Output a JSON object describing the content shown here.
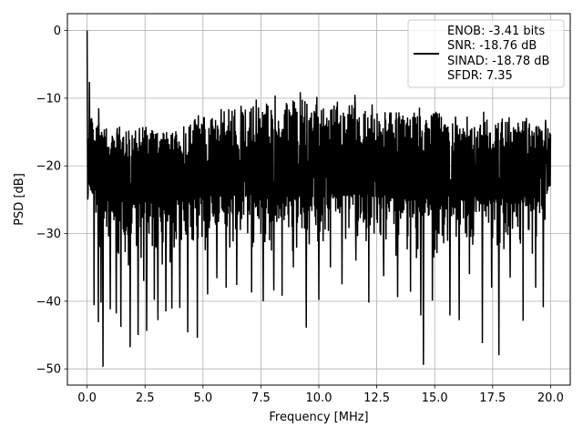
{
  "chart_data": {
    "type": "line",
    "xlabel": "Frequency [MHz]",
    "ylabel": "PSD [dB]",
    "xlim": [
      -0.85,
      20.85
    ],
    "ylim": [
      -52.4,
      2.5
    ],
    "xticks": [
      0.0,
      2.5,
      5.0,
      7.5,
      10.0,
      12.5,
      15.0,
      17.5,
      20.0
    ],
    "xtick_labels": [
      "0.0",
      "2.5",
      "5.0",
      "7.5",
      "10.0",
      "12.5",
      "15.0",
      "17.5",
      "20.0"
    ],
    "yticks": [
      0,
      -10,
      -20,
      -30,
      -40,
      -50
    ],
    "ytick_labels": [
      "0",
      "−10",
      "−20",
      "−30",
      "−40",
      "−50"
    ],
    "grid": true,
    "legend_position": "top-right",
    "legend_lines": [
      "ENOB: -3.41 bits",
      "SNR: -18.76 dB",
      "SINAD: -18.78 dB",
      "SFDR: 7.35"
    ],
    "series": [
      {
        "color": "#000000",
        "x_range": [
          0.0,
          20.0
        ],
        "peak": {
          "x": 0.0,
          "y": 0.0
        },
        "noise_floor_mean": -21,
        "noise_upper_envelope": [
          [
            0.0,
            -12
          ],
          [
            0.5,
            -14
          ],
          [
            1.5,
            -15
          ],
          [
            2.5,
            -14
          ],
          [
            3.5,
            -15
          ],
          [
            4.5,
            -13
          ],
          [
            5.5,
            -12
          ],
          [
            6.5,
            -11
          ],
          [
            7.5,
            -11
          ],
          [
            8.5,
            -10
          ],
          [
            9.5,
            -10
          ],
          [
            10.5,
            -11
          ],
          [
            11.5,
            -11
          ],
          [
            12.5,
            -12
          ],
          [
            13.5,
            -12
          ],
          [
            14.5,
            -12
          ],
          [
            15.5,
            -12
          ],
          [
            16.5,
            -13
          ],
          [
            17.5,
            -13
          ],
          [
            18.5,
            -13
          ],
          [
            19.5,
            -14
          ],
          [
            20.0,
            -14
          ]
        ],
        "noise_lower_envelope": [
          [
            0.0,
            -25
          ],
          [
            0.5,
            -34
          ],
          [
            1.5,
            -37
          ],
          [
            2.5,
            -38
          ],
          [
            3.5,
            -38
          ],
          [
            4.5,
            -36
          ],
          [
            5.5,
            -34
          ],
          [
            6.5,
            -34
          ],
          [
            7.5,
            -34
          ],
          [
            8.5,
            -35
          ],
          [
            9.5,
            -34
          ],
          [
            10.5,
            -33
          ],
          [
            11.5,
            -32
          ],
          [
            12.5,
            -34
          ],
          [
            13.5,
            -34
          ],
          [
            14.5,
            -36
          ],
          [
            15.5,
            -35
          ],
          [
            16.5,
            -35
          ],
          [
            17.5,
            -36
          ],
          [
            18.5,
            -35
          ],
          [
            19.5,
            -34
          ],
          [
            20.0,
            -25
          ]
        ],
        "deep_dips": [
          [
            0.3,
            -40.6
          ],
          [
            0.48,
            -43.1
          ],
          [
            0.6,
            -40.2
          ],
          [
            0.68,
            -49.7
          ],
          [
            1.0,
            -41.2
          ],
          [
            1.25,
            -41.8
          ],
          [
            1.46,
            -43.8
          ],
          [
            1.85,
            -46.8
          ],
          [
            2.2,
            -45.0
          ],
          [
            2.57,
            -44.4
          ],
          [
            2.9,
            -39.8
          ],
          [
            3.05,
            -42.8
          ],
          [
            3.4,
            -41.5
          ],
          [
            3.65,
            -41.1
          ],
          [
            4.0,
            -41.0
          ],
          [
            4.35,
            -44.6
          ],
          [
            4.75,
            -45.4
          ],
          [
            5.2,
            -39.0
          ],
          [
            5.6,
            -36.6
          ],
          [
            6.0,
            -38.0
          ],
          [
            6.45,
            -37.6
          ],
          [
            7.1,
            -38.7
          ],
          [
            7.6,
            -40.0
          ],
          [
            8.06,
            -38.4
          ],
          [
            8.42,
            -39.2
          ],
          [
            8.9,
            -35.0
          ],
          [
            9.46,
            -43.9
          ],
          [
            10.0,
            -39.8
          ],
          [
            10.5,
            -35.0
          ],
          [
            11.0,
            -37.5
          ],
          [
            11.6,
            -34.0
          ],
          [
            12.15,
            -40.2
          ],
          [
            12.8,
            -36.3
          ],
          [
            13.4,
            -39.4
          ],
          [
            13.95,
            -38.6
          ],
          [
            14.4,
            -42.1
          ],
          [
            14.52,
            -49.4
          ],
          [
            14.9,
            -39.9
          ],
          [
            15.65,
            -42.1
          ],
          [
            16.06,
            -42.8
          ],
          [
            16.5,
            -36.0
          ],
          [
            17.06,
            -46.2
          ],
          [
            17.45,
            -38.0
          ],
          [
            17.77,
            -48.0
          ],
          [
            18.25,
            -36.5
          ],
          [
            18.82,
            -42.9
          ],
          [
            19.35,
            -38.0
          ],
          [
            19.68,
            -40.9
          ]
        ],
        "tall_spikes": [
          [
            0.1,
            -7.6
          ],
          [
            0.5,
            -11.5
          ],
          [
            1.3,
            -14.4
          ],
          [
            1.4,
            -14.2
          ],
          [
            2.8,
            -14.7
          ],
          [
            4.8,
            -12.5
          ],
          [
            5.78,
            -11.6
          ],
          [
            6.64,
            -11.1
          ],
          [
            7.3,
            -10.2
          ],
          [
            8.12,
            -9.6
          ],
          [
            8.9,
            -10.1
          ],
          [
            9.2,
            -9.1
          ],
          [
            9.92,
            -9.8
          ],
          [
            10.8,
            -10.5
          ],
          [
            11.55,
            -9.5
          ],
          [
            12.3,
            -10.9
          ],
          [
            13.07,
            -12.1
          ],
          [
            14.34,
            -11.4
          ],
          [
            15.06,
            -12.0
          ],
          [
            15.9,
            -12.7
          ],
          [
            16.4,
            -12.7
          ],
          [
            17.12,
            -12.0
          ],
          [
            18.22,
            -12.8
          ],
          [
            18.96,
            -12.9
          ],
          [
            19.79,
            -13.2
          ]
        ]
      }
    ]
  }
}
